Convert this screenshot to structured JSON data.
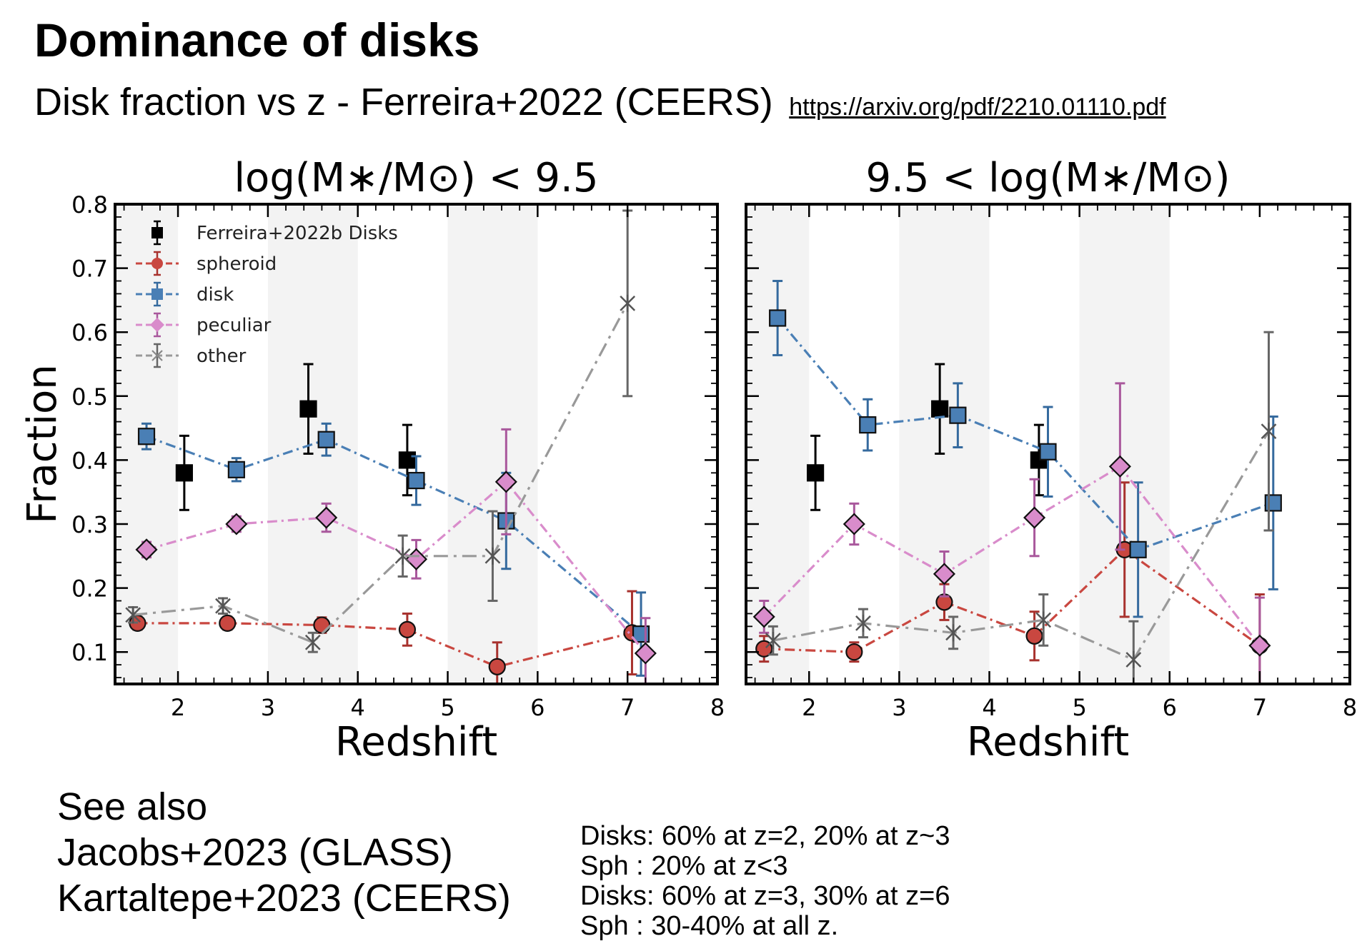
{
  "slide": {
    "title": "Dominance of disks",
    "subtitle": "Disk fraction vs z - Ferreira+2022 (CEERS)",
    "link": "https://arxiv.org/pdf/2210.01110.pdf"
  },
  "see_also": {
    "heading": "See also",
    "refs": [
      "Jacobs+2023 (GLASS)",
      "Kartaltepe+2023 (CEERS)"
    ]
  },
  "notes": [
    "Disks: 60% at z=2, 20% at z~3",
    "Sph : 20% at z<3",
    "Disks: 60% at z=3, 30% at z=6",
    "Sph : 30-40% at all z."
  ],
  "chart_data": [
    {
      "type": "scatter",
      "title": "log(M∗/M⊙) < 9.5",
      "xlabel": "Redshift",
      "ylabel": "Fraction",
      "xlim": [
        1.3,
        8
      ],
      "ylim": [
        0.05,
        0.8
      ],
      "xticks": [
        "2",
        "3",
        "4",
        "5",
        "6",
        "7",
        "8"
      ],
      "yticks": [
        "0.1",
        "0.2",
        "0.3",
        "0.4",
        "0.5",
        "0.6",
        "0.7",
        "0.8"
      ],
      "shaded_bands": [
        [
          1.3,
          2
        ],
        [
          3,
          4
        ],
        [
          5,
          6
        ]
      ],
      "legend": {
        "position": "top-left"
      },
      "series": [
        {
          "name": "Ferreira+2022b Disks",
          "color": "#000000",
          "marker": "square",
          "line": "none",
          "points": [
            [
              2.07,
              0.38,
              0.058
            ],
            [
              3.45,
              0.48,
              0.07
            ],
            [
              4.55,
              0.4,
              0.055
            ]
          ]
        },
        {
          "name": "spheroid",
          "color": "#c94740",
          "marker": "circle",
          "line": "dashdot",
          "points": [
            [
              1.55,
              0.145,
              0.01
            ],
            [
              2.55,
              0.145,
              0.01
            ],
            [
              3.6,
              0.142,
              0.012
            ],
            [
              4.55,
              0.135,
              0.025
            ],
            [
              5.55,
              0.077,
              0.038
            ],
            [
              7.05,
              0.13,
              0.065
            ]
          ]
        },
        {
          "name": "disk",
          "color": "#4a7fb5",
          "marker": "square",
          "line": "dashdot",
          "points": [
            [
              1.65,
              0.437,
              0.02
            ],
            [
              2.65,
              0.385,
              0.018
            ],
            [
              3.65,
              0.432,
              0.025
            ],
            [
              4.65,
              0.368,
              0.038
            ],
            [
              5.65,
              0.305,
              0.075
            ],
            [
              7.15,
              0.128,
              0.065
            ]
          ]
        },
        {
          "name": "peculiar",
          "color": "#d98ccb",
          "marker": "diamond",
          "line": "dashdot",
          "points": [
            [
              1.65,
              0.26,
              0.012
            ],
            [
              2.65,
              0.3,
              0.012
            ],
            [
              3.65,
              0.31,
              0.022
            ],
            [
              4.65,
              0.245,
              0.03
            ],
            [
              5.65,
              0.366,
              0.082
            ],
            [
              7.2,
              0.098,
              0.055
            ]
          ]
        },
        {
          "name": "other",
          "color": "#999999",
          "marker": "x",
          "line": "dashed",
          "points": [
            [
              1.5,
              0.158,
              0.012
            ],
            [
              2.5,
              0.172,
              0.012
            ],
            [
              3.5,
              0.115,
              0.015
            ],
            [
              4.5,
              0.25,
              0.032
            ],
            [
              5.5,
              0.25,
              0.07
            ],
            [
              7.0,
              0.645,
              0.145
            ]
          ]
        }
      ]
    },
    {
      "type": "scatter",
      "title": "9.5 < log(M∗/M⊙)",
      "xlabel": "Redshift",
      "ylabel": "",
      "xlim": [
        1.3,
        8
      ],
      "ylim": [
        0.05,
        0.8
      ],
      "xticks": [
        "2",
        "3",
        "4",
        "5",
        "6",
        "7",
        "8"
      ],
      "yticks": [],
      "shaded_bands": [
        [
          1.3,
          2
        ],
        [
          3,
          4
        ],
        [
          5,
          6
        ]
      ],
      "series": [
        {
          "name": "Ferreira+2022b Disks",
          "color": "#000000",
          "marker": "square",
          "line": "none",
          "points": [
            [
              2.07,
              0.38,
              0.058
            ],
            [
              3.45,
              0.48,
              0.07
            ],
            [
              4.55,
              0.4,
              0.055
            ]
          ]
        },
        {
          "name": "spheroid",
          "color": "#c94740",
          "marker": "circle",
          "line": "dashdot",
          "points": [
            [
              1.5,
              0.105,
              0.02
            ],
            [
              2.5,
              0.1,
              0.015
            ],
            [
              3.5,
              0.178,
              0.028
            ],
            [
              4.5,
              0.125,
              0.038
            ],
            [
              5.5,
              0.26,
              0.105
            ],
            [
              7.0,
              0.11,
              0.08
            ]
          ]
        },
        {
          "name": "disk",
          "color": "#4a7fb5",
          "marker": "square",
          "line": "dashdot",
          "points": [
            [
              1.65,
              0.622,
              0.058
            ],
            [
              2.65,
              0.455,
              0.04
            ],
            [
              3.65,
              0.47,
              0.05
            ],
            [
              4.65,
              0.413,
              0.07
            ],
            [
              5.65,
              0.26,
              0.105
            ],
            [
              7.15,
              0.333,
              0.135
            ]
          ]
        },
        {
          "name": "peculiar",
          "color": "#d98ccb",
          "marker": "diamond",
          "line": "dashdot",
          "points": [
            [
              1.5,
              0.155,
              0.025
            ],
            [
              2.5,
              0.3,
              0.032
            ],
            [
              3.5,
              0.222,
              0.035
            ],
            [
              4.5,
              0.31,
              0.06
            ],
            [
              5.45,
              0.39,
              0.13
            ],
            [
              7.0,
              0.11,
              0.075
            ]
          ]
        },
        {
          "name": "other",
          "color": "#999999",
          "marker": "x",
          "line": "dashed",
          "points": [
            [
              1.6,
              0.118,
              0.022
            ],
            [
              2.6,
              0.145,
              0.022
            ],
            [
              3.6,
              0.13,
              0.025
            ],
            [
              4.6,
              0.15,
              0.04
            ],
            [
              5.6,
              0.088,
              0.06
            ],
            [
              7.1,
              0.445,
              0.155
            ]
          ]
        }
      ]
    }
  ]
}
